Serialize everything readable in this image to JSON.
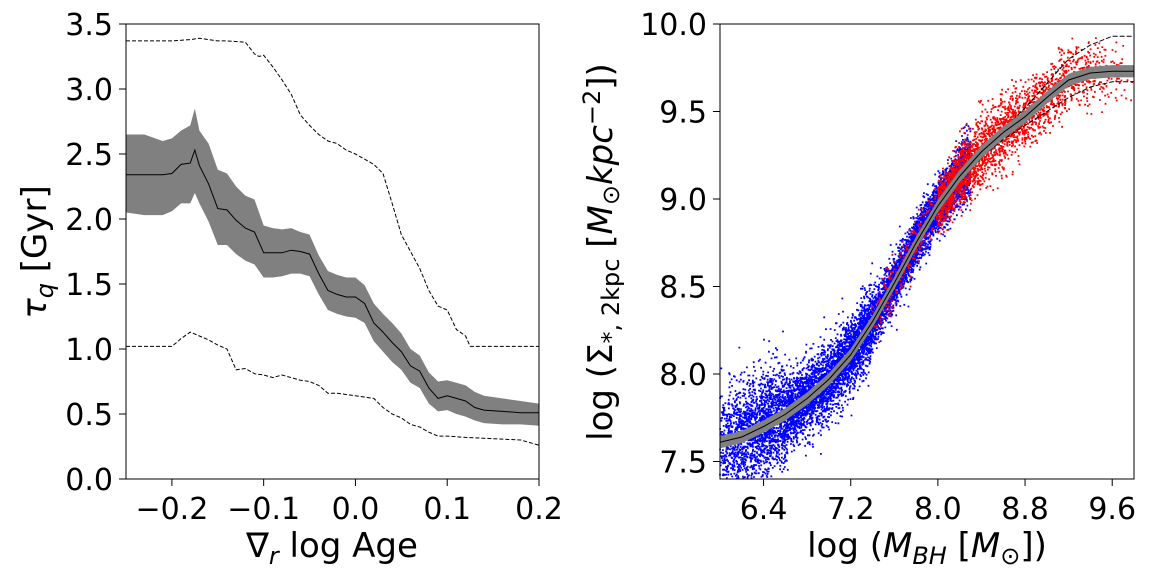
{
  "chart_data": [
    {
      "type": "line",
      "title": "",
      "xlabel_parts": [
        "∇",
        "r",
        " log Age"
      ],
      "ylabel_parts": [
        "τ",
        "q",
        " [Gyr]"
      ],
      "xlim": [
        -0.25,
        0.2
      ],
      "ylim": [
        0.0,
        3.5
      ],
      "xticks": [
        -0.2,
        -0.1,
        0.0,
        0.1,
        0.2
      ],
      "xtick_labels": [
        "−0.2",
        "−0.1",
        "0.0",
        "0.1",
        "0.2"
      ],
      "yticks": [
        0.0,
        0.5,
        1.0,
        1.5,
        2.0,
        2.5,
        3.0,
        3.5
      ],
      "ytick_labels": [
        "0.0",
        "0.5",
        "1.0",
        "1.5",
        "2.0",
        "2.5",
        "3.0",
        "3.5"
      ],
      "colors": {
        "band": "#808080",
        "line": "#000000"
      },
      "series": [
        {
          "name": "median",
          "x": [
            -0.25,
            -0.23,
            -0.21,
            -0.2,
            -0.19,
            -0.18,
            -0.175,
            -0.17,
            -0.16,
            -0.15,
            -0.14,
            -0.13,
            -0.12,
            -0.11,
            -0.1,
            -0.09,
            -0.08,
            -0.07,
            -0.06,
            -0.05,
            -0.04,
            -0.03,
            -0.02,
            -0.01,
            0.0,
            0.01,
            0.02,
            0.03,
            0.04,
            0.05,
            0.06,
            0.07,
            0.08,
            0.09,
            0.1,
            0.11,
            0.12,
            0.13,
            0.14,
            0.16,
            0.18,
            0.2
          ],
          "y": [
            2.34,
            2.34,
            2.34,
            2.35,
            2.42,
            2.43,
            2.53,
            2.41,
            2.27,
            2.08,
            2.07,
            1.99,
            1.93,
            1.9,
            1.74,
            1.74,
            1.74,
            1.76,
            1.75,
            1.73,
            1.58,
            1.45,
            1.42,
            1.4,
            1.4,
            1.35,
            1.2,
            1.13,
            1.05,
            0.98,
            0.87,
            0.83,
            0.7,
            0.62,
            0.64,
            0.62,
            0.6,
            0.55,
            0.53,
            0.52,
            0.51,
            0.51
          ]
        },
        {
          "name": "band-upper",
          "x": [
            -0.25,
            -0.23,
            -0.21,
            -0.2,
            -0.19,
            -0.18,
            -0.175,
            -0.17,
            -0.16,
            -0.15,
            -0.14,
            -0.13,
            -0.12,
            -0.11,
            -0.1,
            -0.09,
            -0.08,
            -0.07,
            -0.06,
            -0.05,
            -0.04,
            -0.03,
            -0.02,
            -0.01,
            0.0,
            0.01,
            0.02,
            0.03,
            0.04,
            0.05,
            0.06,
            0.07,
            0.08,
            0.09,
            0.1,
            0.11,
            0.12,
            0.13,
            0.14,
            0.16,
            0.18,
            0.2
          ],
          "y": [
            2.65,
            2.65,
            2.6,
            2.62,
            2.68,
            2.72,
            2.85,
            2.68,
            2.58,
            2.38,
            2.35,
            2.25,
            2.18,
            2.15,
            1.95,
            1.93,
            1.92,
            1.93,
            1.9,
            1.88,
            1.72,
            1.6,
            1.57,
            1.55,
            1.55,
            1.49,
            1.35,
            1.27,
            1.2,
            1.12,
            1.0,
            0.95,
            0.82,
            0.75,
            0.76,
            0.74,
            0.72,
            0.67,
            0.64,
            0.62,
            0.6,
            0.58
          ]
        },
        {
          "name": "band-lower",
          "x": [
            -0.25,
            -0.23,
            -0.21,
            -0.2,
            -0.19,
            -0.18,
            -0.175,
            -0.17,
            -0.16,
            -0.15,
            -0.14,
            -0.13,
            -0.12,
            -0.11,
            -0.1,
            -0.09,
            -0.08,
            -0.07,
            -0.06,
            -0.05,
            -0.04,
            -0.03,
            -0.02,
            -0.01,
            0.0,
            0.01,
            0.02,
            0.03,
            0.04,
            0.05,
            0.06,
            0.07,
            0.08,
            0.09,
            0.1,
            0.11,
            0.12,
            0.13,
            0.14,
            0.16,
            0.18,
            0.2
          ],
          "y": [
            2.05,
            2.03,
            2.03,
            2.06,
            2.12,
            2.12,
            2.2,
            2.12,
            1.98,
            1.8,
            1.8,
            1.73,
            1.68,
            1.65,
            1.55,
            1.55,
            1.56,
            1.58,
            1.58,
            1.56,
            1.42,
            1.3,
            1.27,
            1.25,
            1.24,
            1.2,
            1.06,
            0.98,
            0.9,
            0.84,
            0.74,
            0.7,
            0.58,
            0.52,
            0.53,
            0.5,
            0.48,
            0.45,
            0.43,
            0.42,
            0.42,
            0.41
          ]
        },
        {
          "name": "upper-envelope",
          "x": [
            -0.25,
            -0.2,
            -0.18,
            -0.17,
            -0.15,
            -0.14,
            -0.12,
            -0.11,
            -0.105,
            -0.1,
            -0.09,
            -0.08,
            -0.07,
            -0.06,
            -0.05,
            -0.04,
            -0.03,
            -0.02,
            -0.01,
            0.0,
            0.02,
            0.03,
            0.04,
            0.05,
            0.06,
            0.07,
            0.08,
            0.09,
            0.1,
            0.11,
            0.12,
            0.125,
            0.14,
            0.2
          ],
          "y": [
            3.37,
            3.37,
            3.38,
            3.39,
            3.37,
            3.37,
            3.36,
            3.27,
            3.25,
            3.26,
            3.17,
            3.07,
            2.96,
            2.8,
            2.72,
            2.65,
            2.6,
            2.58,
            2.53,
            2.5,
            2.42,
            2.35,
            2.12,
            1.88,
            1.75,
            1.62,
            1.45,
            1.33,
            1.3,
            1.15,
            1.1,
            1.02,
            1.02,
            1.02
          ]
        },
        {
          "name": "lower-envelope",
          "x": [
            -0.25,
            -0.2,
            -0.19,
            -0.18,
            -0.17,
            -0.16,
            -0.15,
            -0.14,
            -0.13,
            -0.12,
            -0.11,
            -0.1,
            -0.09,
            -0.08,
            -0.07,
            -0.06,
            -0.05,
            -0.04,
            -0.03,
            -0.02,
            -0.01,
            0.0,
            0.02,
            0.03,
            0.04,
            0.05,
            0.06,
            0.07,
            0.08,
            0.09,
            0.1,
            0.12,
            0.15,
            0.18,
            0.2
          ],
          "y": [
            1.02,
            1.02,
            1.08,
            1.13,
            1.1,
            1.07,
            1.03,
            1.0,
            0.84,
            0.85,
            0.81,
            0.8,
            0.78,
            0.8,
            0.78,
            0.76,
            0.75,
            0.72,
            0.66,
            0.66,
            0.65,
            0.64,
            0.62,
            0.55,
            0.5,
            0.47,
            0.42,
            0.4,
            0.36,
            0.33,
            0.33,
            0.32,
            0.31,
            0.3,
            0.26
          ]
        }
      ]
    },
    {
      "type": "scatter",
      "title": "",
      "xlabel_parts": [
        "log (",
        "M",
        "BH",
        " [",
        "M",
        "⊙",
        "])"
      ],
      "ylabel_parts": [
        "log (Σ",
        "*, 2kpc",
        " [",
        "M",
        "⊙",
        "kpc",
        "−2",
        "])"
      ],
      "xlim": [
        6.0,
        9.8
      ],
      "ylim": [
        7.4,
        10.0
      ],
      "xticks": [
        6.4,
        7.2,
        8.0,
        8.8,
        9.6
      ],
      "xtick_labels": [
        "6.4",
        "7.2",
        "8.0",
        "8.8",
        "9.6"
      ],
      "yticks": [
        7.5,
        8.0,
        8.5,
        9.0,
        9.5,
        10.0
      ],
      "ytick_labels": [
        "7.5",
        "8.0",
        "8.5",
        "9.0",
        "9.5",
        "10.0"
      ],
      "colors": {
        "blue": "#0000ff",
        "red": "#ff0000",
        "band": "#808080",
        "line": "#000000"
      },
      "scatter_groups": [
        {
          "name": "blue-population",
          "color": "#0000ff",
          "count": 9000,
          "x_range": [
            6.0,
            8.3
          ]
        },
        {
          "name": "red-population",
          "color": "#ff0000",
          "count": 3000,
          "x_range": [
            7.4,
            9.8
          ]
        }
      ],
      "median": {
        "x": [
          6.0,
          6.2,
          6.4,
          6.6,
          6.8,
          7.0,
          7.2,
          7.4,
          7.6,
          7.8,
          8.0,
          8.2,
          8.4,
          8.6,
          8.8,
          9.0,
          9.2,
          9.4,
          9.6,
          9.8
        ],
        "y": [
          7.61,
          7.64,
          7.7,
          7.77,
          7.86,
          7.97,
          8.11,
          8.3,
          8.52,
          8.75,
          8.96,
          9.13,
          9.27,
          9.38,
          9.47,
          9.58,
          9.68,
          9.72,
          9.73,
          9.73
        ]
      },
      "envelope_upper": {
        "x": [
          8.2,
          8.4,
          8.6,
          8.8,
          9.0,
          9.2,
          9.4,
          9.6,
          9.8
        ],
        "y": [
          9.13,
          9.28,
          9.4,
          9.52,
          9.66,
          9.8,
          9.88,
          9.93,
          9.93
        ]
      },
      "envelope_lower": {
        "x": [
          8.2,
          8.4,
          8.6,
          8.8,
          9.0,
          9.2,
          9.4,
          9.6,
          9.8
        ],
        "y": [
          9.1,
          9.24,
          9.34,
          9.42,
          9.5,
          9.58,
          9.64,
          9.67,
          9.67
        ]
      }
    }
  ]
}
